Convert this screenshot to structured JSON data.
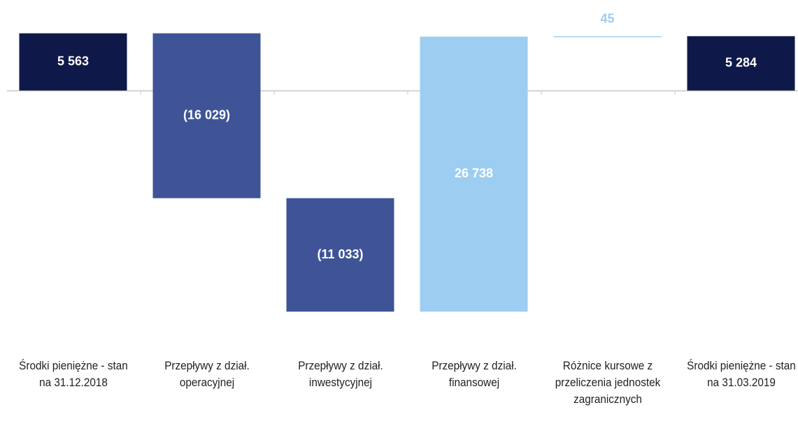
{
  "chart_data": {
    "type": "waterfall",
    "categories": [
      "Środki pieniężne - stan na 31.12.2018",
      "Przepływy z dział. operacyjnej",
      "Przepływy z dział. inwestycyjnej",
      "Przepływy z dział. finansowej",
      "Różnice kursowe z przeliczenia jednostek zagranicznych",
      "Środki pieniężne - stan na 31.03.2019"
    ],
    "values": [
      5563,
      -16029,
      -11033,
      26738,
      45,
      5284
    ],
    "value_labels": [
      "5 563",
      "(16 029)",
      "(11 033)",
      "26 738",
      "45",
      "5 284"
    ],
    "measure": [
      "absolute",
      "relative",
      "relative",
      "relative",
      "relative",
      "total"
    ],
    "colors": [
      "#0f1949",
      "#3f5497",
      "#3f5497",
      "#9dcdf1",
      "#9dcdf1",
      "#0f1949"
    ],
    "ylim": [
      -22500,
      8800
    ]
  }
}
